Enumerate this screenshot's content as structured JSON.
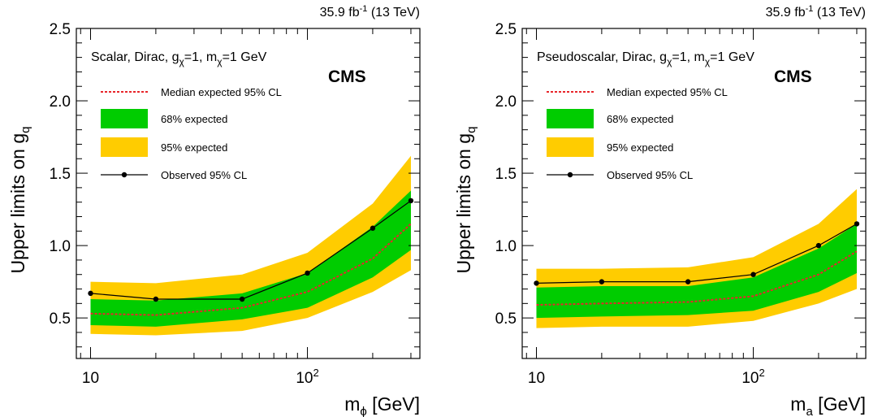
{
  "colors": {
    "band68": "#00cc00",
    "band95": "#ffcc00",
    "expected": "#e8262b",
    "observed": "#000000"
  },
  "chart_data": [
    {
      "type": "line",
      "lumi_label": "35.9 fb",
      "lumi_sup": "-1",
      "lumi_energy": " (13 TeV)",
      "experiment": "CMS",
      "model": {
        "p1": "Scalar, Dirac, g",
        "s1": "χ",
        "p2": "=1, m",
        "s2": "χ",
        "p3": "=1 GeV"
      },
      "ylabel": {
        "main": "Upper limits on g",
        "sub": "q"
      },
      "xlabel": {
        "main": "m",
        "sub": "ϕ",
        "rest": " [GeV]"
      },
      "xscale": "log",
      "xlim": [
        8.6,
        330
      ],
      "ylim": [
        0.22,
        2.5
      ],
      "yticks": [
        0.5,
        1.0,
        1.5,
        2.0,
        2.5
      ],
      "ytick_labels": [
        "0.5",
        "1.0",
        "1.5",
        "2.0",
        "2.5"
      ],
      "xtick_labels": [
        {
          "value": 10,
          "main": "10",
          "sup": ""
        },
        {
          "value": 100,
          "main": "10",
          "sup": "2"
        }
      ],
      "legend": [
        {
          "key": "median",
          "label": "Median expected 95% CL"
        },
        {
          "key": "band68",
          "label": "68% expected"
        },
        {
          "key": "band95",
          "label": "95% expected"
        },
        {
          "key": "observed",
          "label": "Observed 95% CL"
        }
      ],
      "x": [
        10,
        20,
        50,
        100,
        200,
        300
      ],
      "expected": [
        0.53,
        0.52,
        0.57,
        0.68,
        0.91,
        1.15
      ],
      "band68_low": [
        0.45,
        0.44,
        0.49,
        0.57,
        0.78,
        0.97
      ],
      "band68_high": [
        0.63,
        0.62,
        0.67,
        0.81,
        1.13,
        1.38
      ],
      "band95_low": [
        0.39,
        0.38,
        0.41,
        0.5,
        0.68,
        0.83
      ],
      "band95_high": [
        0.75,
        0.74,
        0.8,
        0.95,
        1.29,
        1.62
      ],
      "observed": [
        0.67,
        0.63,
        0.63,
        0.81,
        1.12,
        1.31
      ]
    },
    {
      "type": "line",
      "lumi_label": "35.9 fb",
      "lumi_sup": "-1",
      "lumi_energy": " (13 TeV)",
      "experiment": "CMS",
      "model": {
        "p1": "Pseudoscalar, Dirac, g",
        "s1": "χ",
        "p2": "=1, m",
        "s2": "χ",
        "p3": "=1 GeV"
      },
      "ylabel": {
        "main": "Upper limits on g",
        "sub": "q"
      },
      "xlabel": {
        "main": "m",
        "sub": "a",
        "rest": " [GeV]"
      },
      "xscale": "log",
      "xlim": [
        8.6,
        330
      ],
      "ylim": [
        0.22,
        2.5
      ],
      "yticks": [
        0.5,
        1.0,
        1.5,
        2.0,
        2.5
      ],
      "ytick_labels": [
        "0.5",
        "1.0",
        "1.5",
        "2.0",
        "2.5"
      ],
      "xtick_labels": [
        {
          "value": 10,
          "main": "10",
          "sup": ""
        },
        {
          "value": 100,
          "main": "10",
          "sup": "2"
        }
      ],
      "legend": [
        {
          "key": "median",
          "label": "Median expected 95% CL"
        },
        {
          "key": "band68",
          "label": "68% expected"
        },
        {
          "key": "band95",
          "label": "95% expected"
        },
        {
          "key": "observed",
          "label": "Observed 95% CL"
        }
      ],
      "x": [
        10,
        20,
        50,
        100,
        200,
        300
      ],
      "expected": [
        0.59,
        0.6,
        0.61,
        0.65,
        0.8,
        0.96
      ],
      "band68_low": [
        0.5,
        0.51,
        0.52,
        0.55,
        0.68,
        0.81
      ],
      "band68_high": [
        0.71,
        0.72,
        0.72,
        0.78,
        0.98,
        1.15
      ],
      "band95_low": [
        0.43,
        0.44,
        0.44,
        0.48,
        0.6,
        0.7
      ],
      "band95_high": [
        0.84,
        0.84,
        0.85,
        0.92,
        1.15,
        1.39
      ],
      "observed": [
        0.74,
        0.75,
        0.75,
        0.8,
        1.0,
        1.15
      ]
    }
  ]
}
